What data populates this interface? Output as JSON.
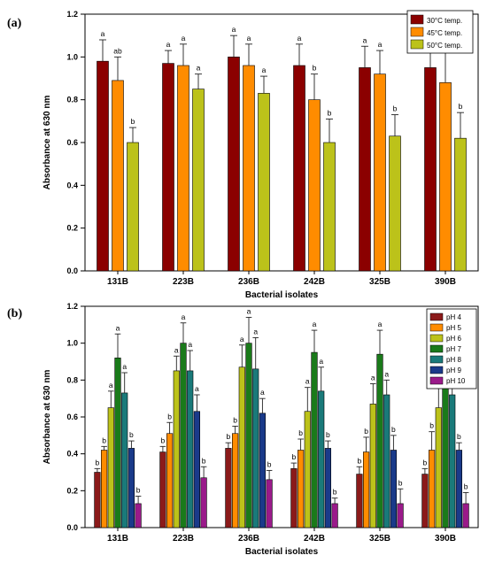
{
  "chart_data": [
    {
      "panel_label": "(a)",
      "type": "bar",
      "xlabel": "Bacterial isolates",
      "ylabel": "Absorbance at 630 nm",
      "ylim": [
        0,
        1.2
      ],
      "yticks": [
        "0.0",
        "0.2",
        "0.4",
        "0.6",
        "0.8",
        "1.0",
        "1.2"
      ],
      "categories": [
        "131B",
        "223B",
        "236B",
        "242B",
        "325B",
        "390B"
      ],
      "legend_position": "top-right",
      "grid": false,
      "series": [
        {
          "name": "30°C temp.",
          "color": "#8b0000",
          "values": [
            0.98,
            0.97,
            1.0,
            0.96,
            0.95,
            0.95
          ],
          "errors": [
            0.1,
            0.06,
            0.1,
            0.1,
            0.1,
            0.11
          ],
          "letters": [
            "a",
            "a",
            "a",
            "a",
            "a",
            "a"
          ]
        },
        {
          "name": "45°C temp.",
          "color": "#ff8c00",
          "values": [
            0.89,
            0.96,
            0.96,
            0.8,
            0.92,
            0.88
          ],
          "errors": [
            0.11,
            0.1,
            0.1,
            0.12,
            0.11,
            0.14
          ],
          "letters": [
            "ab",
            "a",
            "a",
            "b",
            "a",
            "a"
          ]
        },
        {
          "name": "50°C temp.",
          "color": "#bcc21a",
          "values": [
            0.6,
            0.85,
            0.83,
            0.6,
            0.63,
            0.62
          ],
          "errors": [
            0.07,
            0.07,
            0.08,
            0.11,
            0.1,
            0.12
          ],
          "letters": [
            "b",
            "a",
            "a",
            "b",
            "b",
            "b"
          ]
        }
      ]
    },
    {
      "panel_label": "(b)",
      "type": "bar",
      "xlabel": "Bacterial isolates",
      "ylabel": "Absorbance at 630 nm",
      "ylim": [
        0,
        1.2
      ],
      "yticks": [
        "0.0",
        "0.2",
        "0.4",
        "0.6",
        "0.8",
        "1.0",
        "1.2"
      ],
      "categories": [
        "131B",
        "223B",
        "236B",
        "242B",
        "325B",
        "390B"
      ],
      "legend_position": "top-right",
      "grid": false,
      "series": [
        {
          "name": "pH 4",
          "color": "#8b1a1a",
          "values": [
            0.3,
            0.41,
            0.43,
            0.32,
            0.29,
            0.29
          ],
          "errors": [
            0.02,
            0.03,
            0.03,
            0.03,
            0.04,
            0.03
          ],
          "letters": [
            "b",
            "b",
            "b",
            "b",
            "b",
            "b"
          ]
        },
        {
          "name": "pH 5",
          "color": "#ff8c00",
          "values": [
            0.42,
            0.51,
            0.51,
            0.42,
            0.41,
            0.42
          ],
          "errors": [
            0.02,
            0.06,
            0.04,
            0.06,
            0.08,
            0.1
          ],
          "letters": [
            "b",
            "b",
            "b",
            "b",
            "b",
            "b"
          ]
        },
        {
          "name": "pH 6",
          "color": "#bcc21a",
          "values": [
            0.65,
            0.85,
            0.87,
            0.63,
            0.67,
            0.65
          ],
          "errors": [
            0.09,
            0.08,
            0.12,
            0.13,
            0.11,
            0.12
          ],
          "letters": [
            "a",
            "a",
            "a",
            "a",
            "a",
            "a"
          ]
        },
        {
          "name": "pH 7",
          "color": "#1a7a1a",
          "values": [
            0.92,
            1.0,
            1.0,
            0.95,
            0.94,
            0.93
          ],
          "errors": [
            0.13,
            0.11,
            0.14,
            0.12,
            0.13,
            0.1
          ],
          "letters": [
            "a",
            "a",
            "a",
            "a",
            "a",
            "a"
          ]
        },
        {
          "name": "pH 8",
          "color": "#1a7a7a",
          "values": [
            0.73,
            0.85,
            0.86,
            0.74,
            0.72,
            0.72
          ],
          "errors": [
            0.11,
            0.11,
            0.17,
            0.13,
            0.08,
            0.07
          ],
          "letters": [
            "a",
            "a",
            "a",
            "a",
            "a",
            "a"
          ]
        },
        {
          "name": "pH 9",
          "color": "#1a3a8a",
          "values": [
            0.43,
            0.63,
            0.62,
            0.43,
            0.42,
            0.42
          ],
          "errors": [
            0.04,
            0.09,
            0.08,
            0.04,
            0.08,
            0.04
          ],
          "letters": [
            "b",
            "a",
            "a",
            "b",
            "b",
            "b"
          ]
        },
        {
          "name": "pH 10",
          "color": "#9a1a8a",
          "values": [
            0.13,
            0.27,
            0.26,
            0.13,
            0.13,
            0.13
          ],
          "errors": [
            0.04,
            0.06,
            0.05,
            0.03,
            0.08,
            0.06
          ],
          "letters": [
            "b",
            "b",
            "b",
            "b",
            "b",
            "b"
          ]
        }
      ]
    }
  ]
}
